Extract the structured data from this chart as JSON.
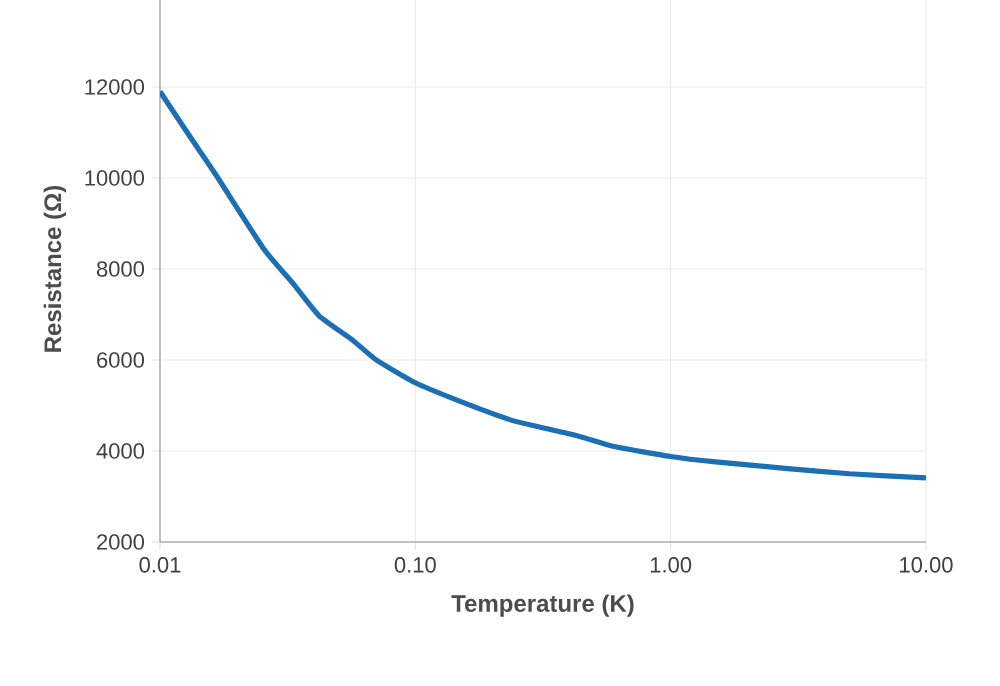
{
  "chart_data": {
    "type": "line",
    "xlabel": "Temperature (K)",
    "ylabel": "Resistance (Ω)",
    "log": "x",
    "grid": true,
    "marker": "none",
    "line_style": "solid",
    "xlim": [
      0.01,
      10
    ],
    "xticks": [
      {
        "value": 0.01,
        "label": "0.01"
      },
      {
        "value": 0.1,
        "label": "0.10"
      },
      {
        "value": 1,
        "label": "1.00"
      },
      {
        "value": 10,
        "label": "10.00"
      }
    ],
    "ylim": [
      2000,
      14000
    ],
    "yticks": [
      2000,
      4000,
      6000,
      8000,
      10000,
      12000
    ],
    "x": [
      0.01,
      0.013,
      0.0166,
      0.0255,
      0.033,
      0.042,
      0.057,
      0.07,
      0.1,
      0.15,
      0.234,
      0.3,
      0.44,
      0.6,
      1,
      1.5,
      2.8,
      5,
      10
    ],
    "series": [
      {
        "color": "#1a6fb5",
        "values": [
          11900,
          10940,
          10060,
          8440,
          7700,
          6970,
          6430,
          6010,
          5500,
          5090,
          4690,
          4540,
          4320,
          4100,
          3880,
          3760,
          3620,
          3500,
          3410
        ]
      }
    ]
  }
}
